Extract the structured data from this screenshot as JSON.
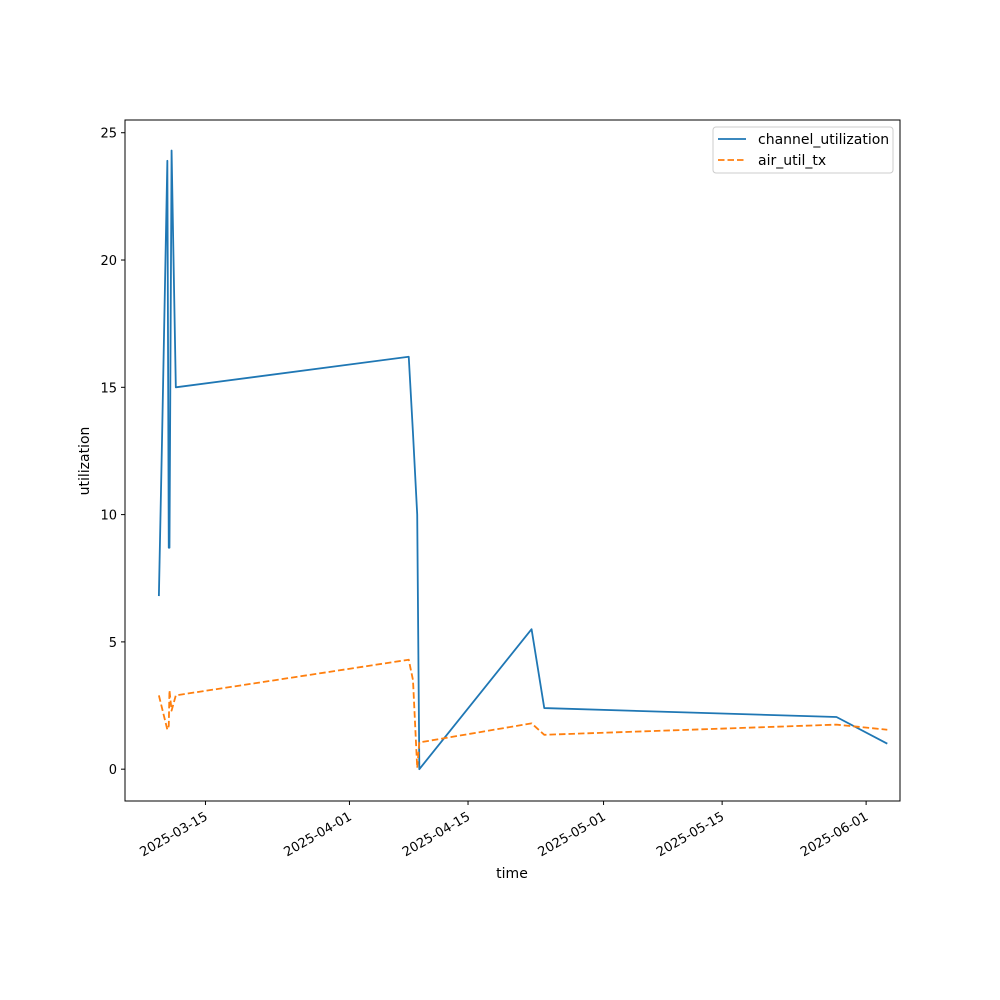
{
  "chart_data": {
    "type": "line",
    "xlabel": "time",
    "ylabel": "utilization",
    "x_ticks": [
      "2025-03-15",
      "2025-04-01",
      "2025-04-15",
      "2025-05-01",
      "2025-05-15",
      "2025-06-01"
    ],
    "y_ticks": [
      0,
      5,
      10,
      15,
      20,
      25
    ],
    "xlim": [
      "2025-03-05T12:00",
      "2025-06-05T00:00"
    ],
    "ylim": [
      -1.25,
      25.5
    ],
    "legend_position": "upper right",
    "grid": false,
    "series": [
      {
        "name": "channel_utilization",
        "color": "#1f77b4",
        "dash": "solid",
        "points": [
          [
            "2025-03-09T12:00",
            6.8
          ],
          [
            "2025-03-09T21:00",
            13.0
          ],
          [
            "2025-03-10T12:00",
            23.9
          ],
          [
            "2025-03-10T16:00",
            8.7
          ],
          [
            "2025-03-10T18:00",
            8.7
          ],
          [
            "2025-03-11T00:00",
            24.3
          ],
          [
            "2025-03-11T12:00",
            15.0
          ],
          [
            "2025-04-08T00:00",
            16.2
          ],
          [
            "2025-04-08T12:00",
            13.2
          ],
          [
            "2025-04-09T00:00",
            10.0
          ],
          [
            "2025-04-09T06:00",
            0.0
          ],
          [
            "2025-04-22T12:00",
            5.5
          ],
          [
            "2025-04-24T00:00",
            2.4
          ],
          [
            "2025-05-28T12:00",
            2.05
          ],
          [
            "2025-06-03T12:00",
            1.0
          ]
        ]
      },
      {
        "name": "air_util_tx",
        "color": "#ff7f0e",
        "dash": "dashed",
        "points": [
          [
            "2025-03-09T12:00",
            2.9
          ],
          [
            "2025-03-10T12:00",
            1.55
          ],
          [
            "2025-03-10T16:00",
            1.7
          ],
          [
            "2025-03-10T18:00",
            3.1
          ],
          [
            "2025-03-11T00:00",
            2.3
          ],
          [
            "2025-03-11T12:00",
            2.9
          ],
          [
            "2025-04-08T00:00",
            4.3
          ],
          [
            "2025-04-08T12:00",
            3.5
          ],
          [
            "2025-04-09T00:00",
            0.05
          ],
          [
            "2025-04-09T06:00",
            1.05
          ],
          [
            "2025-04-22T12:00",
            1.8
          ],
          [
            "2025-04-24T00:00",
            1.35
          ],
          [
            "2025-05-28T12:00",
            1.75
          ],
          [
            "2025-06-03T12:00",
            1.55
          ]
        ]
      }
    ]
  }
}
